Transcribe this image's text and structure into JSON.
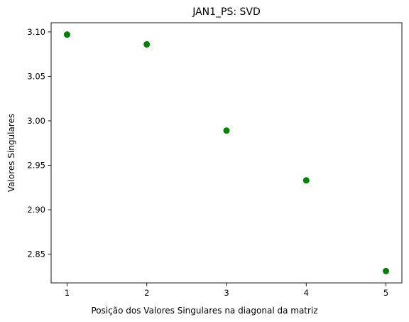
{
  "chart_data": {
    "type": "scatter",
    "title": "JAN1_PS: SVD",
    "xlabel": "Posição dos Valores Singulares na diagonal da matriz",
    "ylabel": "Valores Singulares",
    "x": [
      1,
      2,
      3,
      4,
      5
    ],
    "y": [
      3.097,
      3.086,
      2.989,
      2.933,
      2.831
    ],
    "xticks": [
      1,
      2,
      3,
      4,
      5
    ],
    "xtick_labels": [
      "1",
      "2",
      "3",
      "4",
      "5"
    ],
    "yticks": [
      2.85,
      2.9,
      2.95,
      3.0,
      3.05,
      3.1
    ],
    "ytick_labels": [
      "2.85",
      "2.90",
      "2.95",
      "3.00",
      "3.05",
      "3.10"
    ],
    "xlim": [
      0.8,
      5.2
    ],
    "ylim": [
      2.8177,
      3.1103
    ],
    "marker_color": "#008000",
    "grid": false,
    "legend": "none"
  }
}
